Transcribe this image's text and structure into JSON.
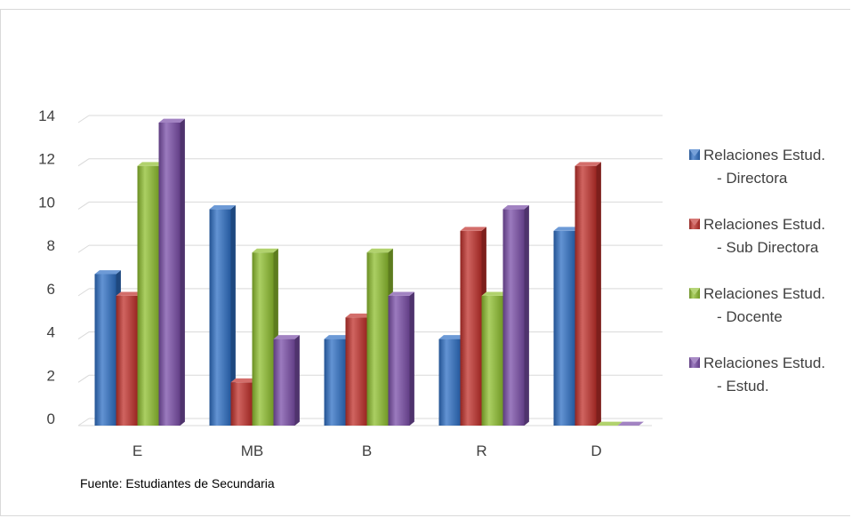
{
  "chart_data": {
    "type": "bar",
    "categories": [
      "E",
      "MB",
      "B",
      "R",
      "D"
    ],
    "series": [
      {
        "name": [
          "Relaciones Estud.",
          "- Directora"
        ],
        "color": "#2e6fc4",
        "values": [
          7,
          10,
          4,
          4,
          9
        ]
      },
      {
        "name": [
          "Relaciones Estud.",
          "- Sub Directora"
        ],
        "color": "#c0302b",
        "values": [
          6,
          2,
          5,
          9,
          12
        ]
      },
      {
        "name": [
          "Relaciones Estud.",
          "- Docente"
        ],
        "color": "#8fbf2f",
        "values": [
          12,
          8,
          8,
          6,
          0
        ]
      },
      {
        "name": [
          "Relaciones Estud.",
          "- Estud."
        ],
        "color": "#7a4ea8",
        "values": [
          14,
          4,
          6,
          10,
          0
        ]
      }
    ],
    "yticks": [
      0,
      2,
      4,
      6,
      8,
      10,
      12,
      14
    ],
    "ylim": [
      0,
      14
    ],
    "grid": true,
    "legend_position": "right"
  },
  "source_note": "Fuente: Estudiantes de Secundaria"
}
